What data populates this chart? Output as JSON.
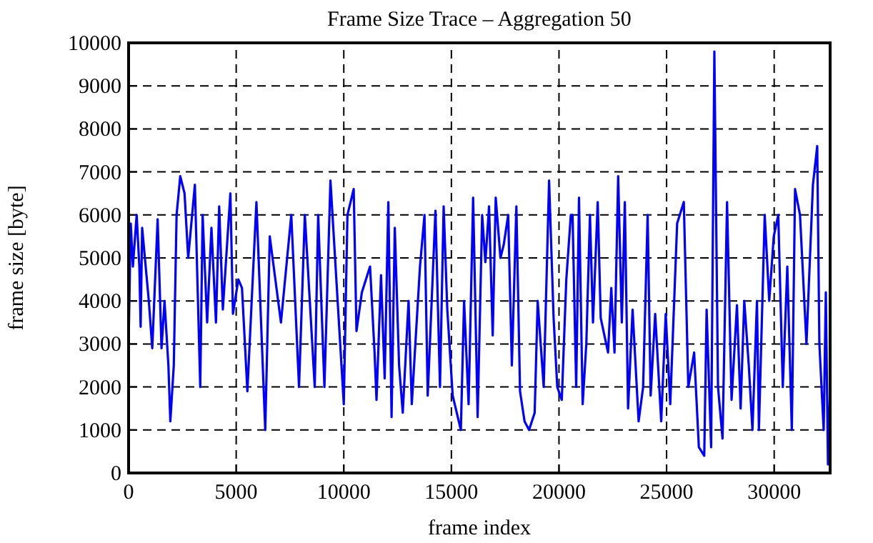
{
  "chart_data": {
    "type": "line",
    "title": "Frame Size Trace – Aggregation 50",
    "xlabel": "frame index",
    "ylabel": "frame size [byte]",
    "xlim": [
      0,
      32600
    ],
    "ylim": [
      0,
      10000
    ],
    "xticks": [
      0,
      5000,
      10000,
      15000,
      20000,
      25000,
      30000
    ],
    "yticks": [
      0,
      1000,
      2000,
      3000,
      4000,
      5000,
      6000,
      7000,
      8000,
      9000,
      10000
    ],
    "grid": true,
    "line_style": "solid",
    "series": [
      {
        "color": "#0000ff",
        "x": [
          0,
          100,
          200,
          375,
          500,
          560,
          630,
          940,
          1100,
          1350,
          1530,
          1670,
          1850,
          1940,
          2100,
          2230,
          2400,
          2600,
          2770,
          3080,
          3330,
          3440,
          3650,
          3850,
          4060,
          4210,
          4380,
          4730,
          4850,
          5100,
          5270,
          5520,
          5940,
          6350,
          6560,
          7080,
          7560,
          7920,
          8190,
          8650,
          8810,
          9100,
          9380,
          10000,
          10170,
          10460,
          10590,
          10840,
          11220,
          11430,
          11520,
          11730,
          11900,
          12070,
          12220,
          12370,
          12570,
          12740,
          13010,
          13160,
          13540,
          13750,
          13900,
          14260,
          14470,
          14640,
          14810,
          15060,
          15440,
          15590,
          15800,
          16010,
          16220,
          16430,
          16580,
          16750,
          16920,
          17060,
          17280,
          17430,
          17640,
          17810,
          18020,
          18190,
          18400,
          18610,
          18870,
          19010,
          19290,
          19540,
          19750,
          19920,
          20130,
          20340,
          20550,
          20630,
          20800,
          20930,
          21100,
          21270,
          21440,
          21580,
          21800,
          21940,
          22280,
          22430,
          22580,
          22750,
          22920,
          23060,
          23210,
          23420,
          23700,
          23910,
          24120,
          24260,
          24470,
          24750,
          24960,
          25170,
          25490,
          25800,
          26010,
          26280,
          26500,
          26750,
          26860,
          27070,
          27220,
          27390,
          27600,
          27810,
          28020,
          28270,
          28440,
          28610,
          28820,
          28990,
          29200,
          29290,
          29560,
          29770,
          29980,
          30190,
          30400,
          30610,
          30820,
          30970,
          31200,
          31500,
          31800,
          32000,
          32100,
          32300,
          32400,
          32500,
          32600
        ],
        "values": [
          3000,
          5800,
          4800,
          6000,
          4800,
          3400,
          5700,
          4000,
          2900,
          5900,
          2900,
          4000,
          2500,
          1200,
          2500,
          6000,
          6900,
          6500,
          5000,
          6700,
          2000,
          6000,
          3500,
          5700,
          3500,
          6200,
          3800,
          6500,
          3700,
          4500,
          4300,
          1900,
          6300,
          1000,
          5500,
          3500,
          6000,
          2000,
          6000,
          2000,
          6000,
          2000,
          6800,
          1600,
          6000,
          6600,
          3300,
          4200,
          4800,
          2800,
          1700,
          4600,
          2200,
          6300,
          1300,
          5700,
          2500,
          1400,
          4000,
          1600,
          4800,
          6000,
          1800,
          6100,
          2000,
          6200,
          3800,
          1800,
          1000,
          4000,
          1600,
          6400,
          1300,
          6000,
          4900,
          6200,
          3200,
          6400,
          5000,
          5300,
          6000,
          2500,
          6200,
          1900,
          1200,
          1000,
          1400,
          4000,
          2000,
          6800,
          3600,
          2000,
          1700,
          4500,
          6000,
          6000,
          2000,
          6400,
          1600,
          3000,
          6000,
          3500,
          6300,
          3600,
          2800,
          4300,
          2800,
          6900,
          3500,
          6300,
          1500,
          3800,
          1200,
          2000,
          6000,
          1800,
          3700,
          1200,
          3700,
          1600,
          5800,
          6300,
          2000,
          2800,
          600,
          400,
          3800,
          600,
          9800,
          2000,
          800,
          6300,
          1700,
          3900,
          1500,
          4000,
          2500,
          1000,
          4000,
          1000,
          6000,
          4000,
          5500,
          6000,
          2000,
          4800,
          1000,
          6600,
          6000,
          3000,
          6700,
          7600,
          3000,
          1000,
          4200,
          200,
          2000
        ]
      }
    ]
  }
}
